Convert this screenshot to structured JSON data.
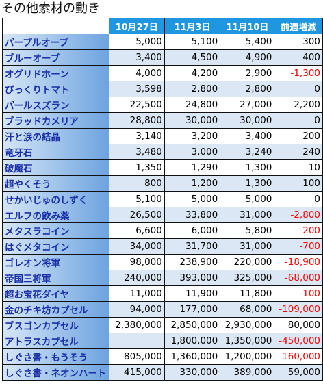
{
  "title": "その他素材の動き",
  "headers": [
    "",
    "10月27日",
    "11月3日",
    "11月10日",
    "前週増減"
  ],
  "rows": [
    {
      "name": "パープルオーブ",
      "d1": "5,000",
      "d2": "5,100",
      "d3": "5,400",
      "diff": "300"
    },
    {
      "name": "ブルーオーブ",
      "d1": "3,400",
      "d2": "4,500",
      "d3": "4,900",
      "diff": "400"
    },
    {
      "name": "オグリドホーン",
      "d1": "4,000",
      "d2": "4,200",
      "d3": "2,900",
      "diff": "-1,300"
    },
    {
      "name": "びっくりトマト",
      "d1": "3,598",
      "d2": "2,800",
      "d3": "2,800",
      "diff": "0"
    },
    {
      "name": "パールスズラン",
      "d1": "22,500",
      "d2": "24,800",
      "d3": "27,000",
      "diff": "2,200"
    },
    {
      "name": "ブラッドカメリア",
      "d1": "28,800",
      "d2": "30,000",
      "d3": "30,000",
      "diff": "0"
    },
    {
      "name": "汗と涙の結晶",
      "d1": "3,140",
      "d2": "3,200",
      "d3": "3,400",
      "diff": "200"
    },
    {
      "name": "竜牙石",
      "d1": "3,480",
      "d2": "3,000",
      "d3": "3,240",
      "diff": "240"
    },
    {
      "name": "破魔石",
      "d1": "1,350",
      "d2": "1,290",
      "d3": "1,300",
      "diff": "10"
    },
    {
      "name": "超やくそう",
      "d1": "800",
      "d2": "1,200",
      "d3": "1,300",
      "diff": "100"
    },
    {
      "name": "せかいじゅのしずく",
      "d1": "5,100",
      "d2": "5,000",
      "d3": "5,000",
      "diff": "0"
    },
    {
      "name": "エルフの飲み薬",
      "d1": "26,500",
      "d2": "33,800",
      "d3": "31,000",
      "diff": "-2,800"
    },
    {
      "name": "メタスラコイン",
      "d1": "6,600",
      "d2": "6,000",
      "d3": "5,800",
      "diff": "-200"
    },
    {
      "name": "はぐメタコイン",
      "d1": "34,000",
      "d2": "31,700",
      "d3": "31,000",
      "diff": "-700"
    },
    {
      "name": "ゴレオン将軍",
      "d1": "98,000",
      "d2": "238,900",
      "d3": "220,000",
      "diff": "-18,900"
    },
    {
      "name": "帝国三将軍",
      "d1": "240,000",
      "d2": "393,000",
      "d3": "325,000",
      "diff": "-68,000"
    },
    {
      "name": "超お宝花ダイヤ",
      "d1": "11,000",
      "d2": "11,900",
      "d3": "11,800",
      "diff": "-100"
    },
    {
      "name": "金のチキ坊カプセル",
      "d1": "94,000",
      "d2": "177,000",
      "d3": "68,000",
      "diff": "-109,000"
    },
    {
      "name": "ブスゴンカプセル",
      "d1": "2,380,000",
      "d2": "2,850,000",
      "d3": "2,930,000",
      "diff": "80,000"
    },
    {
      "name": "アトラスカプセル",
      "d1": "",
      "d2": "1,800,000",
      "d3": "1,350,000",
      "diff": "-450,000"
    },
    {
      "name": "しぐさ書・もうそう",
      "d1": "805,000",
      "d2": "1,360,000",
      "d3": "1,200,000",
      "diff": "-160,000"
    },
    {
      "name": "しぐさ書・ネオンハート",
      "d1": "415,000",
      "d2": "330,000",
      "d3": "389,000",
      "diff": "59,000"
    }
  ],
  "colors": {
    "header_bg": "#1f97e0",
    "name_text": "#1a2fa8",
    "negative": "#ff0000",
    "alt_row": "#dbe7f4"
  }
}
